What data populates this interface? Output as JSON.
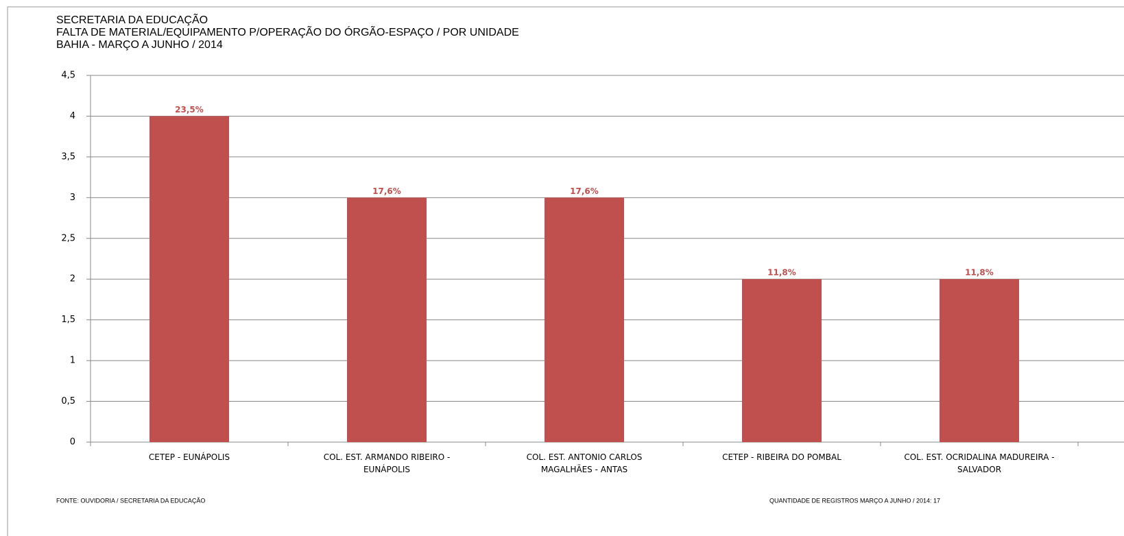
{
  "chart_data": {
    "type": "bar",
    "title_lines": [
      "SECRETARIA  DA EDUCAÇÃO",
      "FALTA DE MATERIAL/EQUIPAMENTO  P/OPERAÇÃO DO ÓRGÃO-ESPAÇO  / POR UNIDADE",
      "BAHIA - MARÇO A JUNHO  / 2014"
    ],
    "categories": [
      "CETEP - EUNÁPOLIS",
      "COL. EST. ARMANDO RIBEIRO -\nEUNÁPOLIS",
      "COL. EST. ANTONIO CARLOS\nMAGALHÃES - ANTAS",
      "CETEP - RIBEIRA DO POMBAL",
      "COL. EST. OCRIDALINA MADUREIRA -\nSALVADOR"
    ],
    "values": [
      4,
      3,
      3,
      2,
      2
    ],
    "percent_labels": [
      "23,5%",
      "17,6%",
      "17,6%",
      "11,8%",
      "11,8%"
    ],
    "color": "#c0504d",
    "ylim": [
      0,
      4.5
    ],
    "yticks": [
      0,
      {
        "value": 0.5,
        "label": "0,5"
      },
      1,
      {
        "value": 1.5,
        "label": "1,5"
      },
      2,
      {
        "value": 2.5,
        "label": "2,5"
      },
      3,
      {
        "value": 3.5,
        "label": "3,5"
      },
      4,
      {
        "value": 4.5,
        "label": "4,5"
      }
    ],
    "grid": true,
    "source": "FONTE: OUVIDORIA / SECRETARIA DA EDUCAÇÃO",
    "note": "QUANTIDADE DE REGISTROS MARÇO A JUNHO / 2014:   17"
  }
}
